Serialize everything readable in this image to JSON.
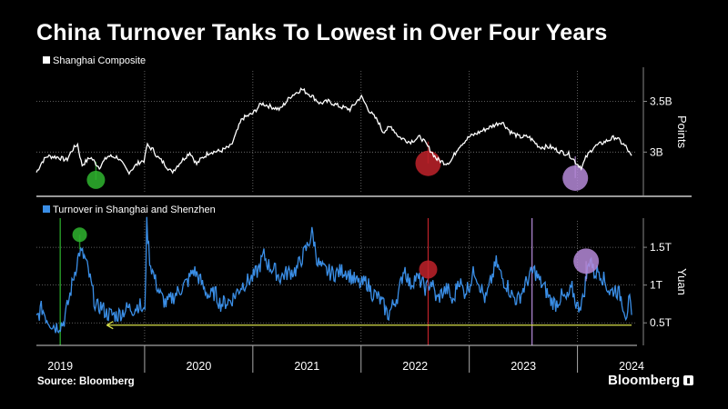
{
  "title": "China Turnover Tanks To Lowest in Over Four Years",
  "source": "Source: Bloomberg",
  "brand": "Bloomberg",
  "brand_icon": "chart-icon",
  "colors": {
    "background": "#000000",
    "composite_line": "#ffffff",
    "turnover_line": "#3a8ee6",
    "green": "#2fb52f",
    "red": "#c0222a",
    "purple": "#b58ad8",
    "arrow": "#d8e04a",
    "grid": "#777777"
  },
  "chart_data": [
    {
      "type": "line",
      "legend": "Shanghai Composite",
      "ylabel": "Points",
      "ylim": [
        2600,
        3800
      ],
      "yticks": [
        3000,
        3500
      ],
      "ytick_labels": [
        "3B",
        "3.5B"
      ],
      "xlim": [
        2019.0,
        2024.55
      ],
      "series": [
        {
          "name": "Shanghai Composite",
          "x": [
            2019.0,
            2019.05,
            2019.1,
            2019.2,
            2019.28,
            2019.33,
            2019.38,
            2019.42,
            2019.5,
            2019.58,
            2019.66,
            2019.75,
            2019.85,
            2019.95,
            2020.0,
            2020.02,
            2020.08,
            2020.12,
            2020.18,
            2020.25,
            2020.33,
            2020.42,
            2020.48,
            2020.52,
            2020.6,
            2020.7,
            2020.8,
            2020.9,
            2021.0,
            2021.08,
            2021.16,
            2021.25,
            2021.35,
            2021.45,
            2021.55,
            2021.62,
            2021.7,
            2021.8,
            2021.9,
            2022.0,
            2022.08,
            2022.16,
            2022.2,
            2022.28,
            2022.35,
            2022.45,
            2022.55,
            2022.62,
            2022.7,
            2022.78,
            2022.83,
            2022.9,
            2023.0,
            2023.1,
            2023.2,
            2023.3,
            2023.38,
            2023.46,
            2023.55,
            2023.65,
            2023.75,
            2023.85,
            2023.92,
            2024.0,
            2024.04,
            2024.08,
            2024.15,
            2024.25,
            2024.35,
            2024.45,
            2024.5
          ],
          "y": [
            2800,
            2900,
            2960,
            2950,
            2920,
            3020,
            3080,
            2870,
            2950,
            2850,
            2960,
            2950,
            2800,
            2900,
            2920,
            3070,
            3020,
            2950,
            2890,
            2800,
            2900,
            3000,
            2880,
            2930,
            3000,
            3010,
            3060,
            3330,
            3380,
            3480,
            3450,
            3420,
            3550,
            3620,
            3550,
            3480,
            3500,
            3450,
            3420,
            3550,
            3400,
            3300,
            3200,
            3250,
            3150,
            3100,
            3150,
            3050,
            2930,
            2890,
            2910,
            3050,
            3150,
            3200,
            3250,
            3300,
            3200,
            3150,
            3150,
            3050,
            3050,
            3000,
            2980,
            2880,
            2850,
            2950,
            3050,
            3100,
            3150,
            3050,
            2950
          ]
        }
      ],
      "markers": [
        {
          "color": "green",
          "x": 2019.55
        },
        {
          "color": "red",
          "x": 2022.62
        },
        {
          "color": "purple",
          "x": 2023.98
        }
      ]
    },
    {
      "type": "line",
      "legend": "Turnover in Shanghai and Shenzhen",
      "ylabel": "Yuan",
      "ylim": [
        0.25,
        1.85
      ],
      "yticks": [
        0.5,
        1.0,
        1.5
      ],
      "ytick_labels": [
        "0.5T",
        "1T",
        "1.5T"
      ],
      "xlim": [
        2019.0,
        2024.55
      ],
      "x_tick_labels": [
        "2019",
        "2020",
        "2021",
        "2022",
        "2023",
        "2024"
      ],
      "series": [
        {
          "name": "Turnover in Shanghai and Shenzhen",
          "x": [
            2019.0,
            2019.05,
            2019.1,
            2019.15,
            2019.18,
            2019.25,
            2019.3,
            2019.35,
            2019.4,
            2019.45,
            2019.5,
            2019.55,
            2019.6,
            2019.65,
            2019.75,
            2019.85,
            2019.9,
            2019.95,
            2020.0,
            2020.02,
            2020.05,
            2020.1,
            2020.15,
            2020.2,
            2020.3,
            2020.4,
            2020.45,
            2020.5,
            2020.55,
            2020.6,
            2020.65,
            2020.7,
            2020.8,
            2020.9,
            2021.0,
            2021.05,
            2021.1,
            2021.15,
            2021.2,
            2021.25,
            2021.3,
            2021.4,
            2021.5,
            2021.55,
            2021.6,
            2021.65,
            2021.75,
            2021.85,
            2021.95,
            2022.0,
            2022.05,
            2022.1,
            2022.15,
            2022.2,
            2022.25,
            2022.3,
            2022.35,
            2022.4,
            2022.45,
            2022.5,
            2022.55,
            2022.6,
            2022.65,
            2022.7,
            2022.75,
            2022.8,
            2022.85,
            2022.9,
            2022.95,
            2023.0,
            2023.05,
            2023.1,
            2023.15,
            2023.2,
            2023.25,
            2023.3,
            2023.35,
            2023.4,
            2023.45,
            2023.5,
            2023.55,
            2023.6,
            2023.65,
            2023.7,
            2023.75,
            2023.8,
            2023.85,
            2023.9,
            2023.95,
            2024.0,
            2024.05,
            2024.08,
            2024.12,
            2024.15,
            2024.2,
            2024.25,
            2024.3,
            2024.35,
            2024.4,
            2024.45,
            2024.48,
            2024.5
          ],
          "y": [
            0.55,
            0.7,
            0.55,
            0.48,
            0.45,
            0.5,
            0.8,
            1.15,
            1.45,
            1.35,
            1.05,
            0.7,
            0.72,
            0.62,
            0.6,
            0.7,
            0.68,
            0.75,
            0.6,
            1.8,
            1.3,
            1.05,
            0.85,
            0.75,
            0.9,
            1.05,
            1.2,
            1.1,
            0.95,
            0.85,
            0.9,
            0.75,
            0.8,
            1.0,
            1.1,
            1.2,
            1.4,
            1.25,
            1.2,
            1.1,
            1.15,
            1.2,
            1.5,
            1.7,
            1.3,
            1.2,
            1.15,
            1.2,
            1.05,
            1.0,
            1.05,
            0.9,
            0.85,
            0.75,
            0.6,
            0.75,
            0.9,
            1.25,
            1.0,
            1.1,
            1.05,
            0.95,
            1.05,
            0.8,
            0.9,
            0.95,
            0.75,
            1.1,
            0.9,
            1.0,
            1.2,
            1.0,
            0.8,
            1.05,
            1.3,
            1.1,
            1.0,
            0.85,
            0.8,
            0.95,
            1.1,
            1.2,
            1.05,
            0.95,
            0.8,
            0.75,
            0.85,
            0.8,
            0.95,
            0.7,
            0.8,
            1.1,
            1.4,
            1.15,
            1.2,
            1.05,
            0.9,
            0.95,
            0.85,
            0.6,
            0.8,
            0.55
          ]
        }
      ],
      "markers": [
        {
          "color": "green",
          "x": 2019.4
        },
        {
          "color": "red",
          "x": 2022.62
        },
        {
          "color": "purple",
          "x": 2024.08
        }
      ],
      "vlines": [
        {
          "color": "green",
          "x": 2019.22
        },
        {
          "color": "red",
          "x": 2022.62
        },
        {
          "color": "purple",
          "x": 2023.58
        }
      ],
      "arrow": {
        "color": "arrow",
        "from_x": 2024.5,
        "to_x": 2019.65,
        "level": 0.47
      }
    }
  ]
}
